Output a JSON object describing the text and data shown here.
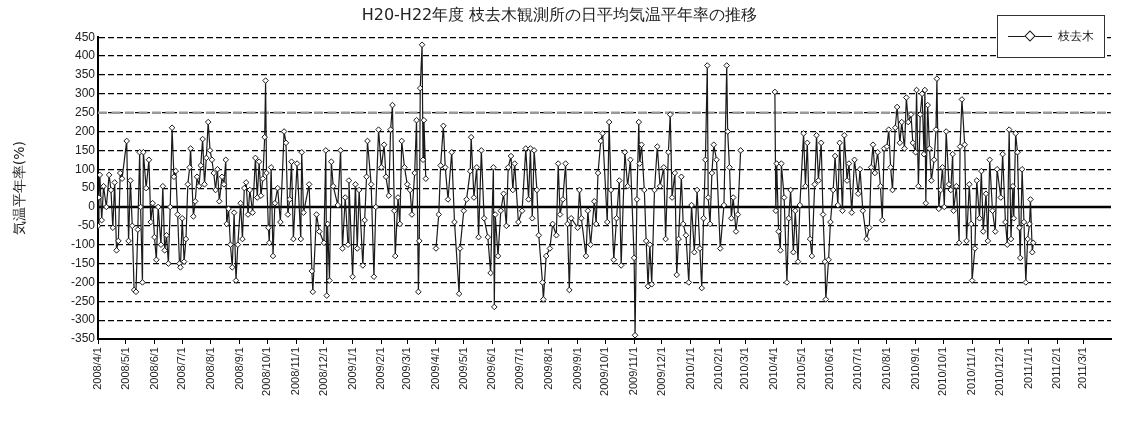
{
  "chart_data": {
    "type": "line",
    "title": "H20-H22年度 枝去木観測所の日平均気温平年率の推移",
    "ylabel": "気温平年率(%)",
    "x": [
      "2008-04-01",
      "2008-04-02",
      "2008-04-03",
      "2008-04-05",
      "2008-04-07",
      "2008-04-10",
      "2008-04-13",
      "2008-04-15",
      "2008-04-17",
      "2008-04-19",
      "2008-04-21",
      "2008-04-23",
      "2008-04-25",
      "2008-04-27",
      "2008-05-02",
      "2008-05-04",
      "2008-05-06",
      "2008-05-08",
      "2008-05-10",
      "2008-05-12",
      "2008-05-14",
      "2008-05-16",
      "2008-05-17",
      "2008-05-19",
      "2008-05-20",
      "2008-05-23",
      "2008-05-26",
      "2008-05-28",
      "2008-05-30",
      "2008-06-01",
      "2008-06-03",
      "2008-06-05",
      "2008-06-08",
      "2008-06-10",
      "2008-06-12",
      "2008-06-14",
      "2008-06-16",
      "2008-06-18",
      "2008-06-20",
      "2008-06-22",
      "2008-06-24",
      "2008-06-26",
      "2008-06-28",
      "2008-06-29",
      "2008-07-01",
      "2008-07-03",
      "2008-07-05",
      "2008-07-07",
      "2008-07-09",
      "2008-07-10",
      "2008-07-13",
      "2008-07-15",
      "2008-07-17",
      "2008-07-19",
      "2008-07-21",
      "2008-07-23",
      "2008-07-25",
      "2008-07-27",
      "2008-07-29",
      "2008-07-31",
      "2008-08-02",
      "2008-08-04",
      "2008-08-06",
      "2008-08-08",
      "2008-08-10",
      "2008-08-13",
      "2008-08-15",
      "2008-08-17",
      "2008-08-18",
      "2008-08-20",
      "2008-08-22",
      "2008-08-24",
      "2008-08-26",
      "2008-08-28",
      "2008-08-30",
      "2008-09-02",
      "2008-09-04",
      "2008-09-06",
      "2008-09-08",
      "2008-09-10",
      "2008-09-12",
      "2008-09-15",
      "2008-09-18",
      "2008-09-20",
      "2008-09-22",
      "2008-09-24",
      "2008-09-26",
      "2008-09-28",
      "2008-09-29",
      "2008-09-30",
      "2008-10-02",
      "2008-10-03",
      "2008-10-05",
      "2008-10-07",
      "2008-10-09",
      "2008-10-12",
      "2008-10-15",
      "2008-10-19",
      "2008-10-21",
      "2008-10-23",
      "2008-10-25",
      "2008-10-27",
      "2008-10-29",
      "2008-11-02",
      "2008-11-06",
      "2008-11-07",
      "2008-11-09",
      "2008-11-15",
      "2008-11-18",
      "2008-11-19",
      "2008-11-23",
      "2008-11-26",
      "2008-12-01",
      "2008-12-03",
      "2008-12-04",
      "2008-12-05",
      "2008-12-07",
      "2008-12-09",
      "2008-12-11",
      "2008-12-16",
      "2008-12-19",
      "2008-12-21",
      "2008-12-24",
      "2008-12-27",
      "2008-12-28",
      "2009-01-01",
      "2009-01-04",
      "2009-01-06",
      "2009-01-08",
      "2009-01-12",
      "2009-01-14",
      "2009-01-16",
      "2009-01-17",
      "2009-01-21",
      "2009-01-24",
      "2009-01-26",
      "2009-01-29",
      "2009-02-01",
      "2009-02-04",
      "2009-02-06",
      "2009-02-09",
      "2009-02-11",
      "2009-02-13",
      "2009-02-15",
      "2009-02-16",
      "2009-02-19",
      "2009-02-21",
      "2009-02-23",
      "2009-02-26",
      "2009-03-01",
      "2009-03-04",
      "2009-03-06",
      "2009-03-09",
      "2009-03-11",
      "2009-03-13",
      "2009-03-14",
      "2009-03-15",
      "2009-03-17",
      "2009-03-18",
      "2009-03-19",
      "2009-03-21",
      "2009-03-26",
      "2009-04-01",
      "2009-04-04",
      "2009-04-06",
      "2009-04-09",
      "2009-04-11",
      "2009-04-14",
      "2009-04-18",
      "2009-04-21",
      "2009-04-26",
      "2009-04-27",
      "2009-05-01",
      "2009-05-04",
      "2009-05-08",
      "2009-05-09",
      "2009-05-12",
      "2009-05-15",
      "2009-05-17",
      "2009-05-20",
      "2009-05-23",
      "2009-05-27",
      "2009-05-30",
      "2009-06-02",
      "2009-06-03",
      "2009-06-04",
      "2009-06-07",
      "2009-06-10",
      "2009-06-13",
      "2009-06-16",
      "2009-06-18",
      "2009-06-21",
      "2009-06-23",
      "2009-06-25",
      "2009-06-29",
      "2009-07-03",
      "2009-07-07",
      "2009-07-10",
      "2009-07-12",
      "2009-07-14",
      "2009-07-16",
      "2009-07-19",
      "2009-07-21",
      "2009-07-25",
      "2009-07-26",
      "2009-07-29",
      "2009-08-02",
      "2009-08-05",
      "2009-08-09",
      "2009-08-11",
      "2009-08-13",
      "2009-08-16",
      "2009-08-19",
      "2009-08-21",
      "2009-08-23",
      "2009-08-25",
      "2009-09-01",
      "2009-09-03",
      "2009-09-05",
      "2009-09-10",
      "2009-09-12",
      "2009-09-15",
      "2009-09-19",
      "2009-09-21",
      "2009-09-23",
      "2009-09-26",
      "2009-09-28",
      "2009-10-03",
      "2009-10-05",
      "2009-10-07",
      "2009-10-10",
      "2009-10-13",
      "2009-10-16",
      "2009-10-18",
      "2009-10-22",
      "2009-10-25",
      "2009-10-28",
      "2009-11-01",
      "2009-11-02",
      "2009-11-04",
      "2009-11-06",
      "2009-11-07",
      "2009-11-09",
      "2009-11-12",
      "2009-11-14",
      "2009-11-16",
      "2009-11-18",
      "2009-11-20",
      "2009-11-23",
      "2009-11-26",
      "2009-11-29",
      "2009-12-03",
      "2009-12-05",
      "2009-12-08",
      "2009-12-10",
      "2009-12-12",
      "2009-12-15",
      "2009-12-17",
      "2009-12-19",
      "2009-12-22",
      "2009-12-24",
      "2009-12-27",
      "2009-12-30",
      "2010-01-02",
      "2010-01-05",
      "2010-01-08",
      "2010-01-11",
      "2010-01-13",
      "2010-01-15",
      "2010-01-17",
      "2010-01-19",
      "2010-01-20",
      "2010-01-22",
      "2010-01-24",
      "2010-01-26",
      "2010-01-29",
      "2010-02-02",
      "2010-02-06",
      "2010-02-09",
      "2010-02-10",
      "2010-02-12",
      "2010-02-14",
      "2010-02-16",
      "2010-02-19",
      "2010-02-21",
      "2010-02-24",
      "2010-03-15",
      "2010-04-02",
      "2010-04-03",
      "2010-04-04",
      "2010-04-06",
      "2010-04-08",
      "2010-04-09",
      "2010-04-12",
      "2010-04-15",
      "2010-04-17",
      "2010-04-19",
      "2010-04-22",
      "2010-04-24",
      "2010-04-27",
      "2010-04-29",
      "2010-05-03",
      "2010-05-05",
      "2010-05-07",
      "2010-05-10",
      "2010-05-12",
      "2010-05-15",
      "2010-05-17",
      "2010-05-19",
      "2010-05-22",
      "2010-05-24",
      "2010-05-26",
      "2010-05-27",
      "2010-05-30",
      "2010-06-01",
      "2010-06-04",
      "2010-06-06",
      "2010-06-09",
      "2010-06-11",
      "2010-06-14",
      "2010-06-16",
      "2010-06-19",
      "2010-06-21",
      "2010-06-24",
      "2010-06-27",
      "2010-07-01",
      "2010-07-03",
      "2010-07-06",
      "2010-07-10",
      "2010-07-13",
      "2010-07-15",
      "2010-07-17",
      "2010-07-19",
      "2010-07-22",
      "2010-07-25",
      "2010-07-27",
      "2010-07-29",
      "2010-08-01",
      "2010-08-03",
      "2010-08-05",
      "2010-08-07",
      "2010-08-10",
      "2010-08-12",
      "2010-08-15",
      "2010-08-17",
      "2010-08-20",
      "2010-08-22",
      "2010-08-24",
      "2010-08-27",
      "2010-08-29",
      "2010-09-01",
      "2010-09-02",
      "2010-09-04",
      "2010-09-06",
      "2010-09-08",
      "2010-09-10",
      "2010-09-11",
      "2010-09-12",
      "2010-09-14",
      "2010-09-16",
      "2010-09-18",
      "2010-09-21",
      "2010-09-23",
      "2010-09-24",
      "2010-09-26",
      "2010-09-28",
      "2010-09-30",
      "2010-10-02",
      "2010-10-04",
      "2010-10-07",
      "2010-10-09",
      "2010-10-11",
      "2010-10-12",
      "2010-10-15",
      "2010-10-18",
      "2010-10-19",
      "2010-10-21",
      "2010-10-24",
      "2010-10-26",
      "2010-10-29",
      "2010-10-31",
      "2010-11-01",
      "2010-11-04",
      "2010-11-06",
      "2010-11-09",
      "2010-11-11",
      "2010-11-13",
      "2010-11-16",
      "2010-11-18",
      "2010-11-20",
      "2010-11-23",
      "2010-11-26",
      "2010-11-28",
      "2010-12-02",
      "2010-12-04",
      "2010-12-07",
      "2010-12-09",
      "2010-12-11",
      "2010-12-13",
      "2010-12-15",
      "2010-12-16",
      "2010-12-18",
      "2010-12-20",
      "2010-12-22",
      "2010-12-23",
      "2010-12-25",
      "2010-12-27",
      "2010-12-29",
      "2010-12-31",
      "2011-01-02",
      "2011-01-03",
      "2011-01-05",
      "2011-01-06"
    ],
    "series": [
      {
        "name": "枝去木",
        "color": "#1a1a1a",
        "values": [
          -50,
          25,
          85,
          -35,
          55,
          0,
          85,
          45,
          -55,
          65,
          -115,
          -90,
          90,
          75,
          175,
          -90,
          70,
          -50,
          -220,
          -225,
          -60,
          145,
          0,
          -200,
          145,
          50,
          125,
          -40,
          10,
          -80,
          -140,
          0,
          -100,
          55,
          -115,
          -75,
          -150,
          0,
          210,
          80,
          95,
          -20,
          -150,
          -160,
          -30,
          -145,
          -85,
          60,
          105,
          155,
          -25,
          15,
          80,
          55,
          110,
          180,
          60,
          130,
          225,
          150,
          125,
          90,
          45,
          100,
          15,
          80,
          60,
          125,
          -45,
          -5,
          -100,
          -160,
          -15,
          -195,
          -100,
          10,
          -85,
          50,
          65,
          -20,
          45,
          -15,
          130,
          25,
          120,
          30,
          75,
          185,
          335,
          90,
          -55,
          -95,
          105,
          -130,
          10,
          50,
          -40,
          200,
          170,
          -20,
          20,
          120,
          -85,
          115,
          -85,
          145,
          -15,
          60,
          -170,
          -225,
          -20,
          -65,
          -95,
          150,
          -235,
          -45,
          -195,
          120,
          55,
          5,
          150,
          -110,
          25,
          -100,
          70,
          -185,
          60,
          -110,
          45,
          -155,
          -35,
          80,
          175,
          60,
          -185,
          0,
          205,
          105,
          165,
          80,
          30,
          205,
          270,
          -10,
          -130,
          25,
          -45,
          175,
          105,
          60,
          45,
          -20,
          90,
          230,
          -225,
          -90,
          315,
          430,
          125,
          230,
          75,
          null,
          -110,
          -20,
          110,
          215,
          105,
          20,
          145,
          -40,
          -230,
          -110,
          -10,
          20,
          95,
          185,
          25,
          105,
          -80,
          150,
          -30,
          -80,
          -175,
          105,
          -265,
          -20,
          -130,
          -10,
          35,
          -50,
          105,
          135,
          45,
          115,
          -40,
          -10,
          155,
          20,
          155,
          -30,
          150,
          45,
          -75,
          -200,
          -245,
          -130,
          -110,
          -45,
          -75,
          115,
          -20,
          20,
          115,
          -45,
          -220,
          -30,
          -55,
          45,
          -30,
          -130,
          -10,
          -100,
          15,
          -45,
          90,
          175,
          195,
          -40,
          225,
          45,
          -140,
          -30,
          70,
          -155,
          145,
          55,
          125,
          -135,
          -340,
          20,
          225,
          115,
          165,
          45,
          -90,
          -210,
          -100,
          -205,
          45,
          160,
          55,
          105,
          -85,
          145,
          245,
          25,
          90,
          -180,
          -85,
          80,
          -45,
          -75,
          -200,
          5,
          -120,
          45,
          -110,
          -215,
          -30,
          125,
          375,
          25,
          -45,
          90,
          165,
          125,
          -110,
          5,
          375,
          200,
          105,
          -30,
          25,
          -65,
          -20,
          150,
          null,
          305,
          -10,
          115,
          -65,
          -115,
          115,
          25,
          -200,
          -30,
          45,
          -120,
          -10,
          -145,
          5,
          195,
          55,
          170,
          -85,
          -130,
          60,
          190,
          70,
          170,
          -20,
          -145,
          -245,
          -140,
          -40,
          45,
          135,
          5,
          170,
          -10,
          190,
          70,
          115,
          -15,
          125,
          35,
          100,
          -10,
          -85,
          -55,
          105,
          165,
          90,
          145,
          55,
          -35,
          155,
          160,
          205,
          105,
          45,
          210,
          265,
          170,
          225,
          155,
          290,
          225,
          245,
          170,
          145,
          310,
          55,
          245,
          300,
          140,
          310,
          10,
          270,
          155,
          70,
          125,
          205,
          340,
          -5,
          45,
          105,
          0,
          200,
          60,
          45,
          140,
          -10,
          55,
          -95,
          160,
          285,
          165,
          -90,
          60,
          -45,
          -195,
          -110,
          70,
          -30,
          95,
          -65,
          35,
          -90,
          125,
          -10,
          -65,
          100,
          25,
          140,
          -40,
          -100,
          205,
          -85,
          55,
          -30,
          195,
          145,
          -55,
          -135,
          100,
          -40,
          -200,
          -85,
          -45,
          20,
          -120,
          -95
        ]
      }
    ],
    "xlim": [
      "2008-04-01",
      "2011-03-31"
    ],
    "xticks": [
      {
        "value": "2008-04-01",
        "label": "2008/4/1"
      },
      {
        "value": "2008-05-01",
        "label": "2008/5/1"
      },
      {
        "value": "2008-06-01",
        "label": "2008/6/1"
      },
      {
        "value": "2008-07-01",
        "label": "2008/7/1"
      },
      {
        "value": "2008-08-01",
        "label": "2008/8/1"
      },
      {
        "value": "2008-09-01",
        "label": "2008/9/1"
      },
      {
        "value": "2008-10-01",
        "label": "2008/10/1"
      },
      {
        "value": "2008-11-01",
        "label": "2008/11/1"
      },
      {
        "value": "2008-12-01",
        "label": "2008/12/1"
      },
      {
        "value": "2009-01-01",
        "label": "2009/1/1"
      },
      {
        "value": "2009-02-01",
        "label": "2009/2/1"
      },
      {
        "value": "2009-03-01",
        "label": "2009/3/1"
      },
      {
        "value": "2009-04-01",
        "label": "2009/4/1"
      },
      {
        "value": "2009-05-01",
        "label": "2009/5/1"
      },
      {
        "value": "2009-06-01",
        "label": "2009/6/1"
      },
      {
        "value": "2009-07-01",
        "label": "2009/7/1"
      },
      {
        "value": "2009-08-01",
        "label": "2009/8/1"
      },
      {
        "value": "2009-09-01",
        "label": "2009/9/1"
      },
      {
        "value": "2009-10-01",
        "label": "2009/10/1"
      },
      {
        "value": "2009-11-01",
        "label": "2009/11/1"
      },
      {
        "value": "2009-12-01",
        "label": "2009/12/1"
      },
      {
        "value": "2010-01-01",
        "label": "2010/1/1"
      },
      {
        "value": "2010-02-01",
        "label": "2010/2/1"
      },
      {
        "value": "2010-03-01",
        "label": "2010/3/1"
      },
      {
        "value": "2010-04-01",
        "label": "2010/4/1"
      },
      {
        "value": "2010-05-01",
        "label": "2010/5/1"
      },
      {
        "value": "2010-06-01",
        "label": "2010/6/1"
      },
      {
        "value": "2010-07-01",
        "label": "2010/7/1"
      },
      {
        "value": "2010-08-01",
        "label": "2010/8/1"
      },
      {
        "value": "2010-09-01",
        "label": "2010/9/1"
      },
      {
        "value": "2010-10-01",
        "label": "2010/10/1"
      },
      {
        "value": "2010-11-01",
        "label": "2010/11/1"
      },
      {
        "value": "2010-12-01",
        "label": "2010/12/1"
      },
      {
        "value": "2011-01-01",
        "label": "2011/1/1"
      },
      {
        "value": "2011-02-01",
        "label": "2011/2/1"
      },
      {
        "value": "2011-03-01",
        "label": "2011/3/1"
      }
    ],
    "ylim": [
      -350,
      450
    ],
    "yticks": [
      -350,
      -300,
      -250,
      -200,
      -150,
      -100,
      -50,
      0,
      50,
      100,
      150,
      200,
      250,
      300,
      350,
      400,
      450
    ],
    "grid": "y",
    "legend": "top right",
    "marker": "diamond",
    "line_style": "solid",
    "ref_lines": [
      {
        "axis": "y",
        "value": 250,
        "color": "#999999",
        "line_style": "dashed"
      },
      {
        "axis": "y",
        "value": 0,
        "color": "#000000",
        "line_style": "solid"
      }
    ]
  }
}
